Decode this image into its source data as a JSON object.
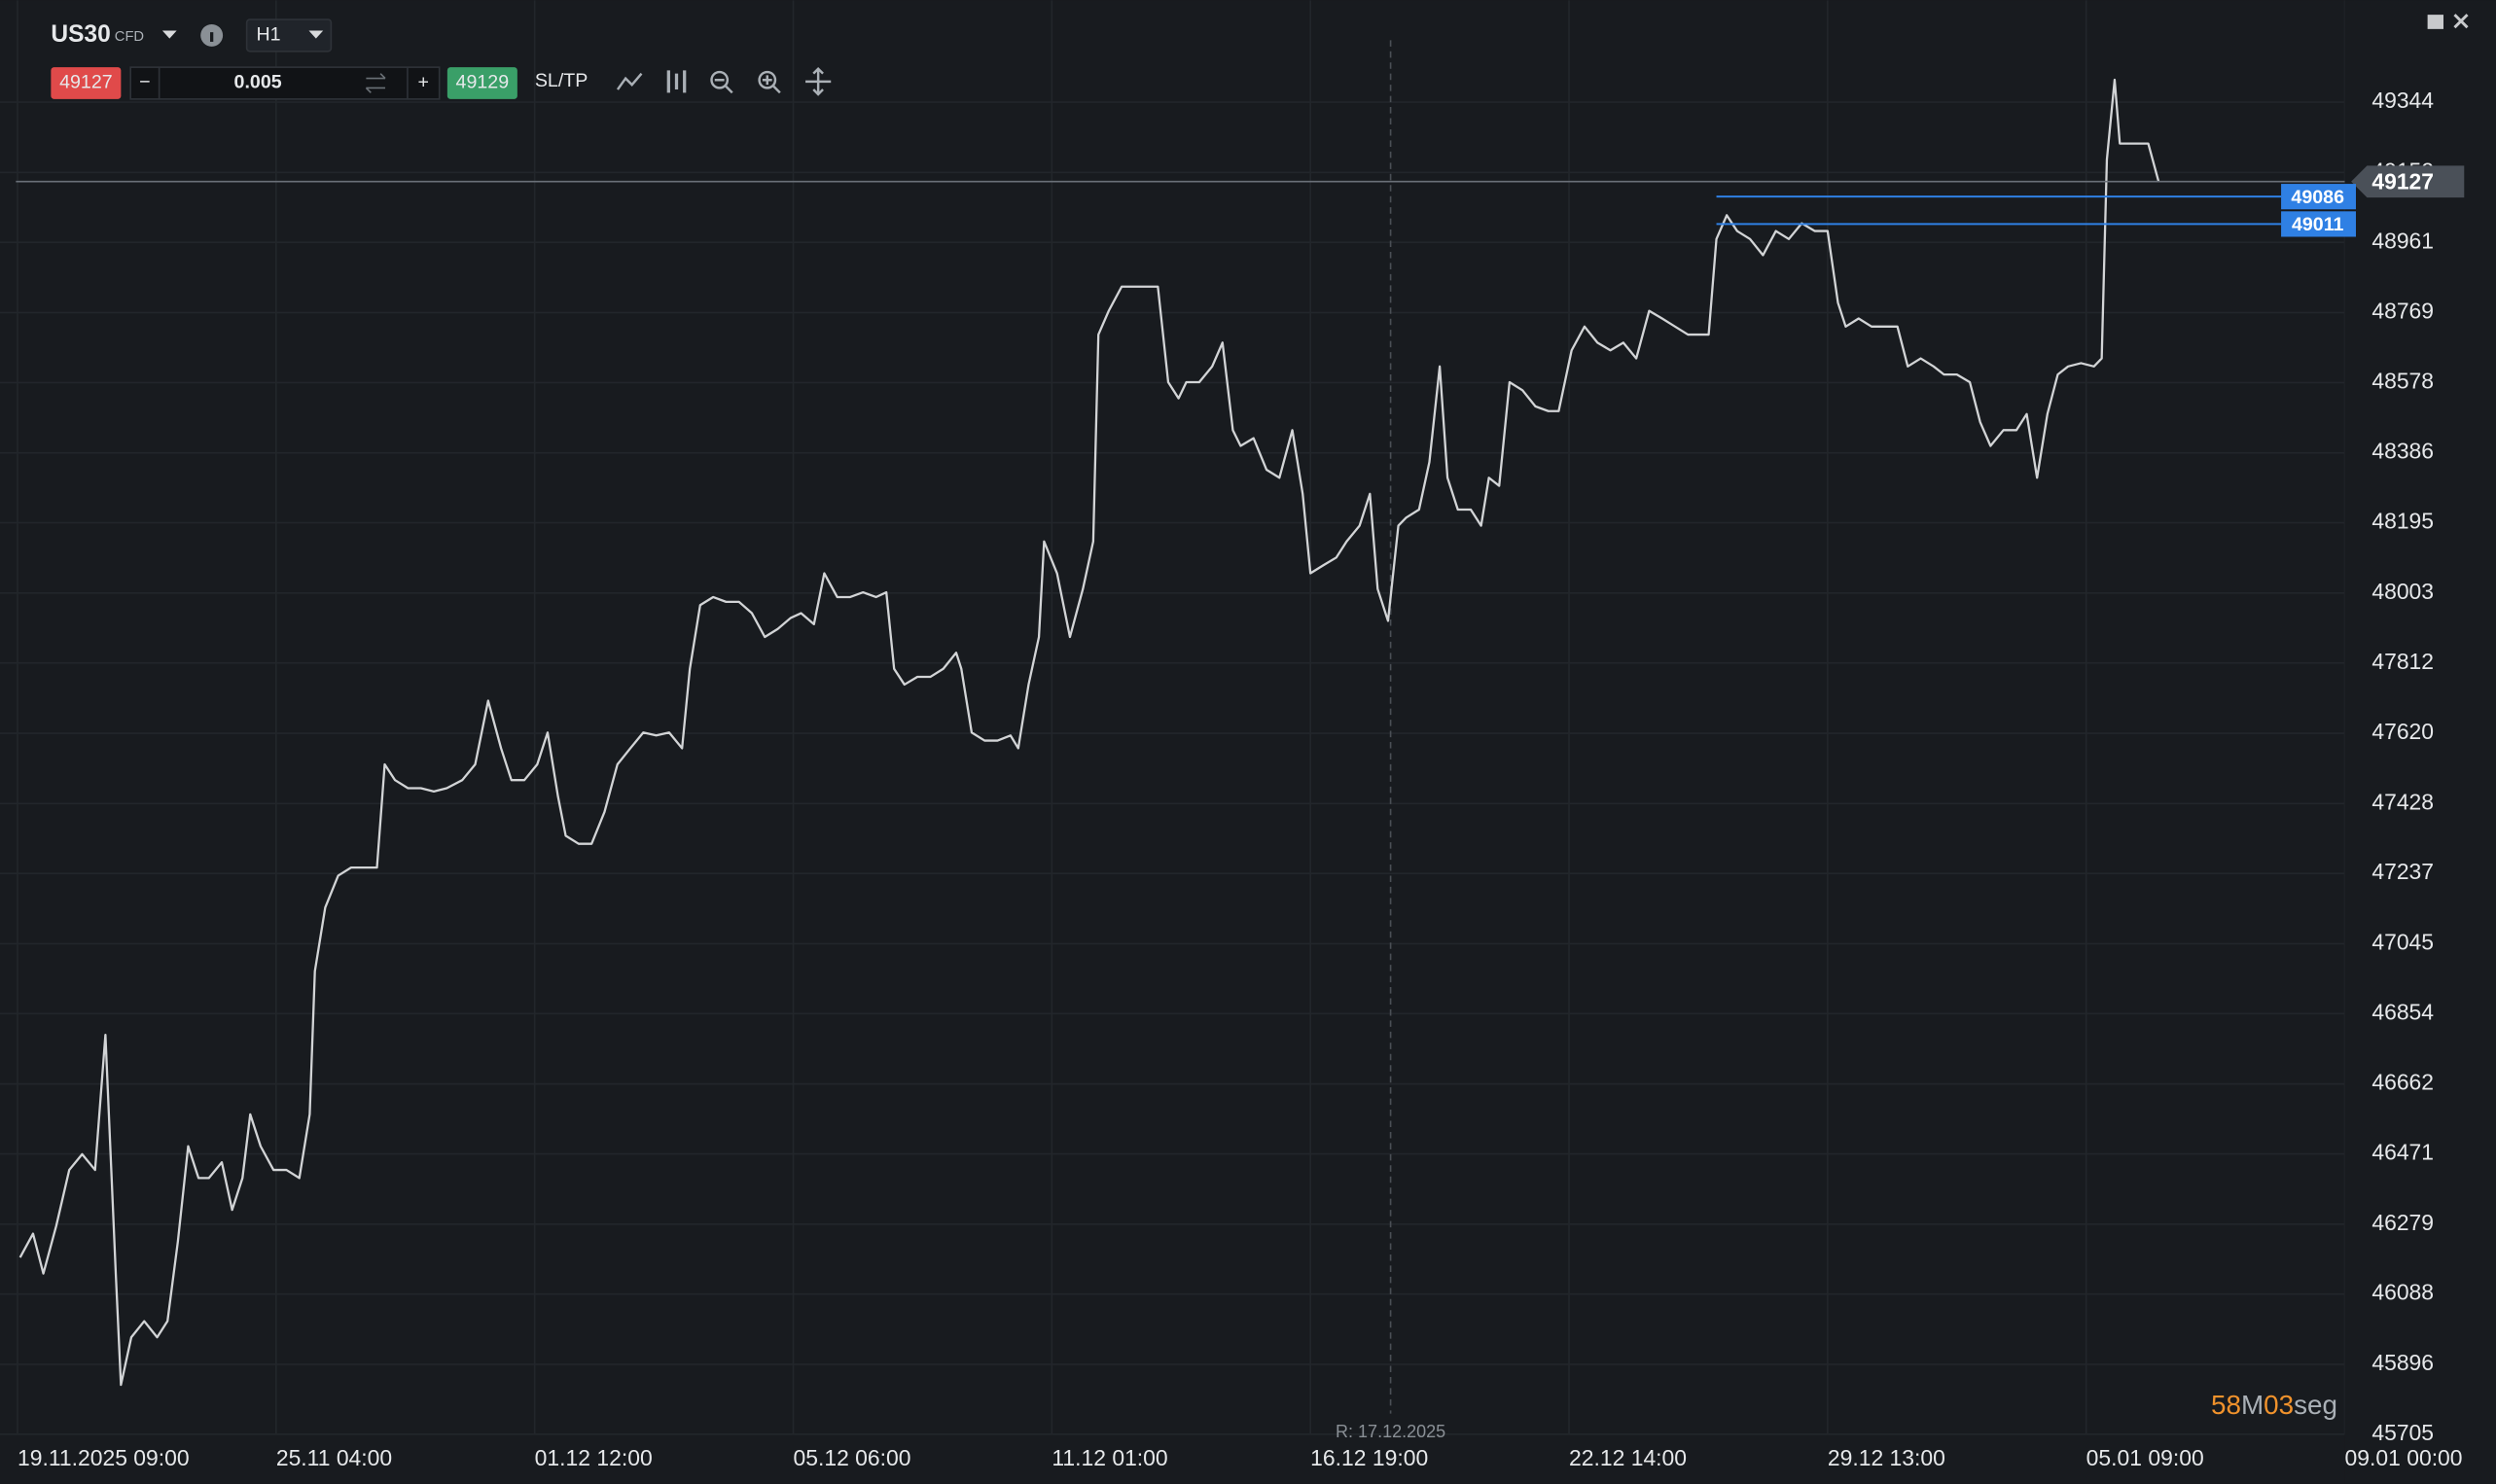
{
  "toolbar": {
    "symbol": "US30",
    "symbol_type": "CFD",
    "timeframe": "H1",
    "sell_price": "49127",
    "decrease": "−",
    "volume": "0.005",
    "increase": "+",
    "buy_price": "49129",
    "sltp": "SL/TP"
  },
  "chart_data": {
    "type": "line",
    "series": [
      {
        "color": "#d2d4d6",
        "x": [
          1,
          6,
          10,
          15,
          20,
          25,
          30,
          34,
          38,
          40,
          44,
          49,
          54,
          58,
          62,
          66,
          70,
          74,
          79,
          83,
          87,
          90,
          94,
          99,
          104,
          109,
          113,
          115,
          119,
          124,
          129,
          134,
          139,
          142,
          146,
          151,
          156,
          161,
          166,
          172,
          177,
          182,
          187,
          191,
          196,
          201,
          205,
          209,
          212,
          217,
          222,
          227,
          232,
          237,
          242,
          247,
          252,
          257,
          260,
          264,
          269,
          274,
          279,
          284,
          289,
          294,
          299,
          303,
          308,
          312,
          317,
          322,
          327,
          332,
          336,
          339,
          343,
          348,
          353,
          358,
          363,
          365,
          369,
          374,
          379,
          384,
          387,
          391,
          395,
          397,
          402,
          407,
          412,
          416,
          418,
          422,
          427,
          432,
          436,
          441,
          445,
          449,
          452,
          457,
          462,
          466,
          470,
          473,
          478,
          483,
          488,
          493,
          497,
          500,
          505,
          510,
          514,
          519,
          523,
          526,
          530,
          534,
          537,
          542,
          546,
          550,
          553,
          557,
          562,
          566,
          569,
          573,
          577,
          582,
          587,
          592,
          596,
          601,
          606,
          611,
          616,
          621,
          626,
          631,
          636,
          641,
          646,
          651,
          654,
          657,
          661,
          665,
          670,
          675,
          680,
          685,
          690,
          695,
          700,
          704,
          707,
          712,
          717,
          722,
          727,
          731,
          736,
          741,
          745,
          750,
          755,
          759,
          763,
          768,
          773,
          777,
          781,
          785,
          789,
          793,
          798,
          803,
          806,
          808,
          811,
          813,
          817,
          821,
          824,
          828
        ],
        "values": [
          46188,
          46253,
          46144,
          46275,
          46427,
          46470,
          46427,
          46796,
          46144,
          45840,
          45970,
          46014,
          45970,
          46014,
          46231,
          46492,
          46405,
          46405,
          46448,
          46318,
          46405,
          46579,
          46492,
          46427,
          46427,
          46405,
          46579,
          46970,
          47144,
          47231,
          47253,
          47253,
          47253,
          47535,
          47492,
          47470,
          47470,
          47461,
          47470,
          47492,
          47535,
          47709,
          47579,
          47492,
          47492,
          47535,
          47622,
          47448,
          47340,
          47318,
          47318,
          47405,
          47535,
          47579,
          47622,
          47614,
          47622,
          47579,
          47796,
          47970,
          47992,
          47979,
          47979,
          47948,
          47883,
          47905,
          47935,
          47948,
          47918,
          48057,
          47992,
          47992,
          48005,
          47992,
          48005,
          47796,
          47753,
          47774,
          47774,
          47796,
          47840,
          47796,
          47622,
          47600,
          47600,
          47614,
          47579,
          47753,
          47883,
          48144,
          48057,
          47883,
          48014,
          48144,
          48709,
          48774,
          48840,
          48840,
          48840,
          48840,
          48579,
          48535,
          48579,
          48579,
          48622,
          48687,
          48448,
          48405,
          48426,
          48340,
          48318,
          48448,
          48274,
          48057,
          48079,
          48100,
          48144,
          48187,
          48274,
          48014,
          47927,
          48187,
          48209,
          48231,
          48361,
          48622,
          48318,
          48231,
          48231,
          48187,
          48318,
          48296,
          48579,
          48557,
          48513,
          48500,
          48500,
          48666,
          48731,
          48687,
          48666,
          48687,
          48644,
          48774,
          48753,
          48731,
          48709,
          48709,
          48709,
          48970,
          49035,
          48992,
          48970,
          48926,
          48992,
          48970,
          49013,
          48992,
          48992,
          48796,
          48731,
          48753,
          48731,
          48731,
          48731,
          48622,
          48644,
          48622,
          48600,
          48600,
          48579,
          48470,
          48405,
          48448,
          48448,
          48492,
          48318,
          48492,
          48600,
          48622,
          48631,
          48622,
          48644,
          49187,
          49405,
          49231,
          49231,
          49231,
          49231,
          49127
        ]
      }
    ],
    "xlim": [
      0,
      900
    ],
    "xticks": [
      {
        "value": 0,
        "label": "19.11.2025 09:00"
      },
      {
        "value": 100,
        "label": "25.11 04:00"
      },
      {
        "value": 200,
        "label": "01.12 12:00"
      },
      {
        "value": 300,
        "label": "05.12 06:00"
      },
      {
        "value": 400,
        "label": "11.12 01:00"
      },
      {
        "value": 500,
        "label": "16.12 19:00"
      },
      {
        "value": 600,
        "label": "22.12 14:00"
      },
      {
        "value": 700,
        "label": "29.12 13:00"
      },
      {
        "value": 800,
        "label": "05.01 09:00"
      },
      {
        "value": 900,
        "label": "09.01 00:00"
      }
    ],
    "ylim": [
      45705,
      49622
    ],
    "yticks": [
      45705,
      45896,
      46088,
      46279,
      46471,
      46662,
      46854,
      47045,
      47237,
      47428,
      47620,
      47812,
      48003,
      48195,
      48386,
      48578,
      48769,
      48961,
      49152,
      49344
    ],
    "grid": true,
    "current_price": 49127,
    "price_lines": [
      {
        "value": 49086,
        "x": 657,
        "color": "#2f80e4"
      },
      {
        "value": 49011,
        "x": 657,
        "color": "#2f80e4"
      }
    ],
    "marker": {
      "x": 531,
      "label": "R: 17.12.2025"
    }
  },
  "timer": {
    "minutes": "58",
    "minutes_unit": "M",
    "seconds": "03",
    "seconds_unit": "seg"
  }
}
